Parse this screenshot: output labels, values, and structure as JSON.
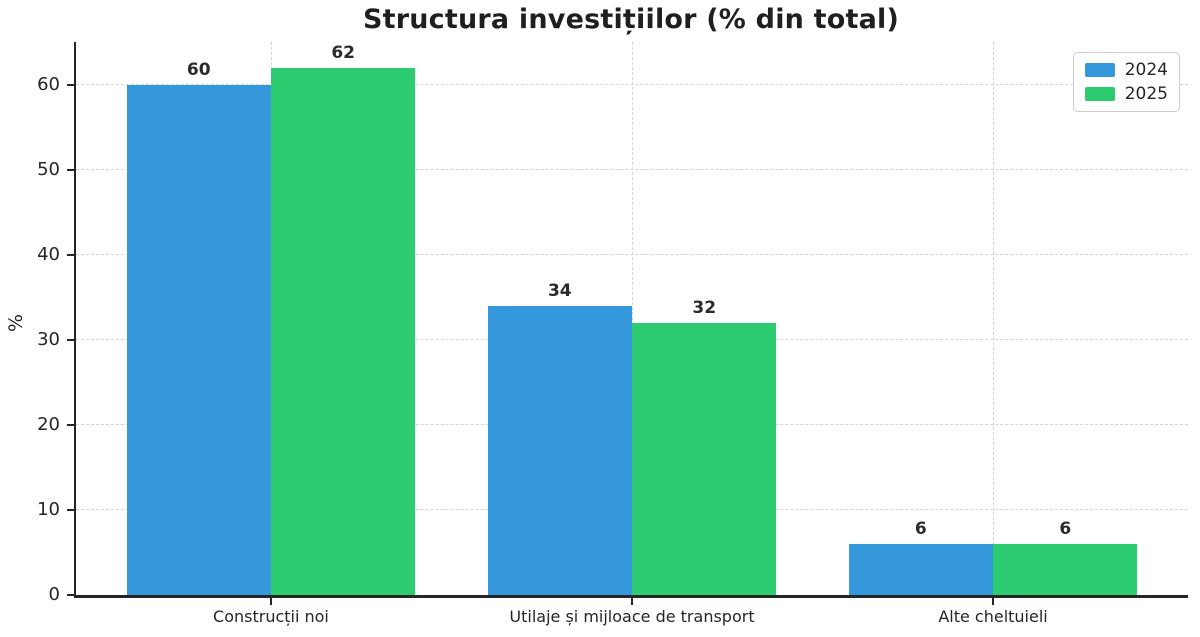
{
  "chart_data": {
    "type": "bar",
    "title": "Structura investițiilor (% din total)",
    "xlabel": "",
    "ylabel": "%",
    "categories": [
      "Construcții noi",
      "Utilaje și mijloace de transport",
      "Alte cheltuieli"
    ],
    "series": [
      {
        "name": "2024",
        "color": "#3498db",
        "values": [
          60,
          34,
          6
        ]
      },
      {
        "name": "2025",
        "color": "#2ecc71",
        "values": [
          62,
          32,
          6
        ]
      }
    ],
    "bar_value_labels": [
      [
        "60",
        "34",
        "6"
      ],
      [
        "62",
        "32",
        "6"
      ]
    ],
    "y_ticks": [
      0,
      10,
      20,
      30,
      40,
      50,
      60
    ],
    "ylim": [
      0,
      65.1
    ],
    "xlim": [
      -0.54,
      2.54
    ],
    "bar_width": 0.4,
    "grid": true,
    "legend_position": "top-right",
    "colors": {
      "axis": "#262626",
      "gridline": "#d4d4d4",
      "title_text": "#1f1f1f",
      "value_label_text": "#2b2b2b",
      "legend_border": "#cccccc",
      "background": "#ffffff"
    }
  }
}
